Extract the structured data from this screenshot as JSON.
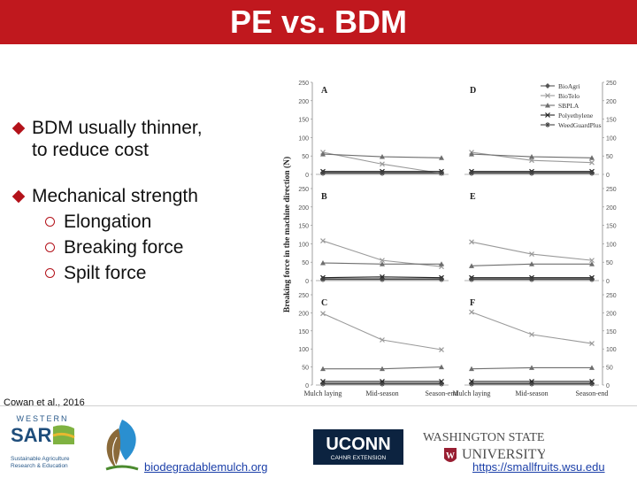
{
  "slide": {
    "title": "PE vs. BDM",
    "bullets": [
      {
        "text_1": "BDM usually thinner,",
        "text_2": "to reduce cost"
      },
      {
        "text": "Mechanical strength",
        "sub": [
          "Elongation",
          "Breaking force",
          "Spilt force"
        ]
      }
    ],
    "citation": "Cowan et al., 2016"
  },
  "colors": {
    "title_bg": "#c0181e",
    "title_text": "#ffffff",
    "bullet_mark": "#b3121a",
    "link": "#1a3ea8"
  },
  "chart_data": {
    "type": "line",
    "ylabel": "Breaking force in the machine direction (N)",
    "x": [
      "Mulch laying",
      "Mid-season",
      "Season-end"
    ],
    "legend_placement": "top-right",
    "series_names": [
      "BioAgri",
      "BioTelo",
      "SBPLA",
      "Polyethylene",
      "WeedGuardPlus"
    ],
    "panels": [
      {
        "label": "A",
        "ylim": [
          0,
          250
        ],
        "series": [
          {
            "name": "BioAgri",
            "values": [
              5,
              5,
              5
            ]
          },
          {
            "name": "BioTelo",
            "values": [
              60,
              28,
              3
            ]
          },
          {
            "name": "SBPLA",
            "values": [
              55,
              48,
              45
            ]
          },
          {
            "name": "Polyethylene",
            "values": [
              8,
              8,
              8
            ]
          },
          {
            "name": "WeedGuardPlus",
            "values": [
              3,
              3,
              3
            ]
          }
        ]
      },
      {
        "label": "D",
        "ylim": [
          0,
          250
        ],
        "series": [
          {
            "name": "BioAgri",
            "values": [
              5,
              5,
              5
            ]
          },
          {
            "name": "BioTelo",
            "values": [
              60,
              38,
              32
            ]
          },
          {
            "name": "SBPLA",
            "values": [
              55,
              48,
              45
            ]
          },
          {
            "name": "Polyethylene",
            "values": [
              8,
              8,
              8
            ]
          },
          {
            "name": "WeedGuardPlus",
            "values": [
              3,
              3,
              3
            ]
          }
        ]
      },
      {
        "label": "B",
        "ylim": [
          0,
          250
        ],
        "series": [
          {
            "name": "BioAgri",
            "values": [
              5,
              5,
              5
            ]
          },
          {
            "name": "BioTelo",
            "values": [
              108,
              55,
              38
            ]
          },
          {
            "name": "SBPLA",
            "values": [
              48,
              45,
              45
            ]
          },
          {
            "name": "Polyethylene",
            "values": [
              8,
              10,
              8
            ]
          },
          {
            "name": "WeedGuardPlus",
            "values": [
              3,
              3,
              3
            ]
          }
        ]
      },
      {
        "label": "E",
        "ylim": [
          0,
          250
        ],
        "series": [
          {
            "name": "BioAgri",
            "values": [
              5,
              5,
              5
            ]
          },
          {
            "name": "BioTelo",
            "values": [
              105,
              72,
              55
            ]
          },
          {
            "name": "SBPLA",
            "values": [
              40,
              45,
              45
            ]
          },
          {
            "name": "Polyethylene",
            "values": [
              8,
              8,
              8
            ]
          },
          {
            "name": "WeedGuardPlus",
            "values": [
              3,
              3,
              3
            ]
          }
        ]
      },
      {
        "label": "C",
        "ylim": [
          0,
          250
        ],
        "series": [
          {
            "name": "BioAgri",
            "values": [
              5,
              5,
              5
            ]
          },
          {
            "name": "BioTelo",
            "values": [
              198,
              125,
              98
            ]
          },
          {
            "name": "SBPLA",
            "values": [
              45,
              45,
              50
            ]
          },
          {
            "name": "Polyethylene",
            "values": [
              10,
              10,
              10
            ]
          },
          {
            "name": "WeedGuardPlus",
            "values": [
              3,
              3,
              3
            ]
          }
        ]
      },
      {
        "label": "F",
        "ylim": [
          0,
          250
        ],
        "series": [
          {
            "name": "BioAgri",
            "values": [
              5,
              5,
              5
            ]
          },
          {
            "name": "BioTelo",
            "values": [
              202,
              140,
              115
            ]
          },
          {
            "name": "SBPLA",
            "values": [
              45,
              48,
              48
            ]
          },
          {
            "name": "Polyethylene",
            "values": [
              10,
              10,
              10
            ]
          },
          {
            "name": "WeedGuardPlus",
            "values": [
              3,
              3,
              3
            ]
          }
        ]
      }
    ],
    "left_ticks": [
      "0",
      "50",
      "100",
      "150",
      "200",
      "250"
    ],
    "right_ticks": [
      "0",
      "50",
      "100",
      "150",
      "200",
      "250"
    ]
  },
  "logos": {
    "sare_top": "WESTERN",
    "sare_main": "SARE",
    "sare_sub_1": "Sustainable Agriculture",
    "sare_sub_2": "Research & Education",
    "uconn_main": "UCONN",
    "uconn_sub": "CAHNR EXTENSION",
    "wsu_line1": "WASHINGTON STATE",
    "wsu_line2": "UNIVERSITY"
  },
  "links": {
    "biodegradable": "biodegradablemulch.org",
    "wsu": "https://smallfruits.wsu.edu"
  }
}
